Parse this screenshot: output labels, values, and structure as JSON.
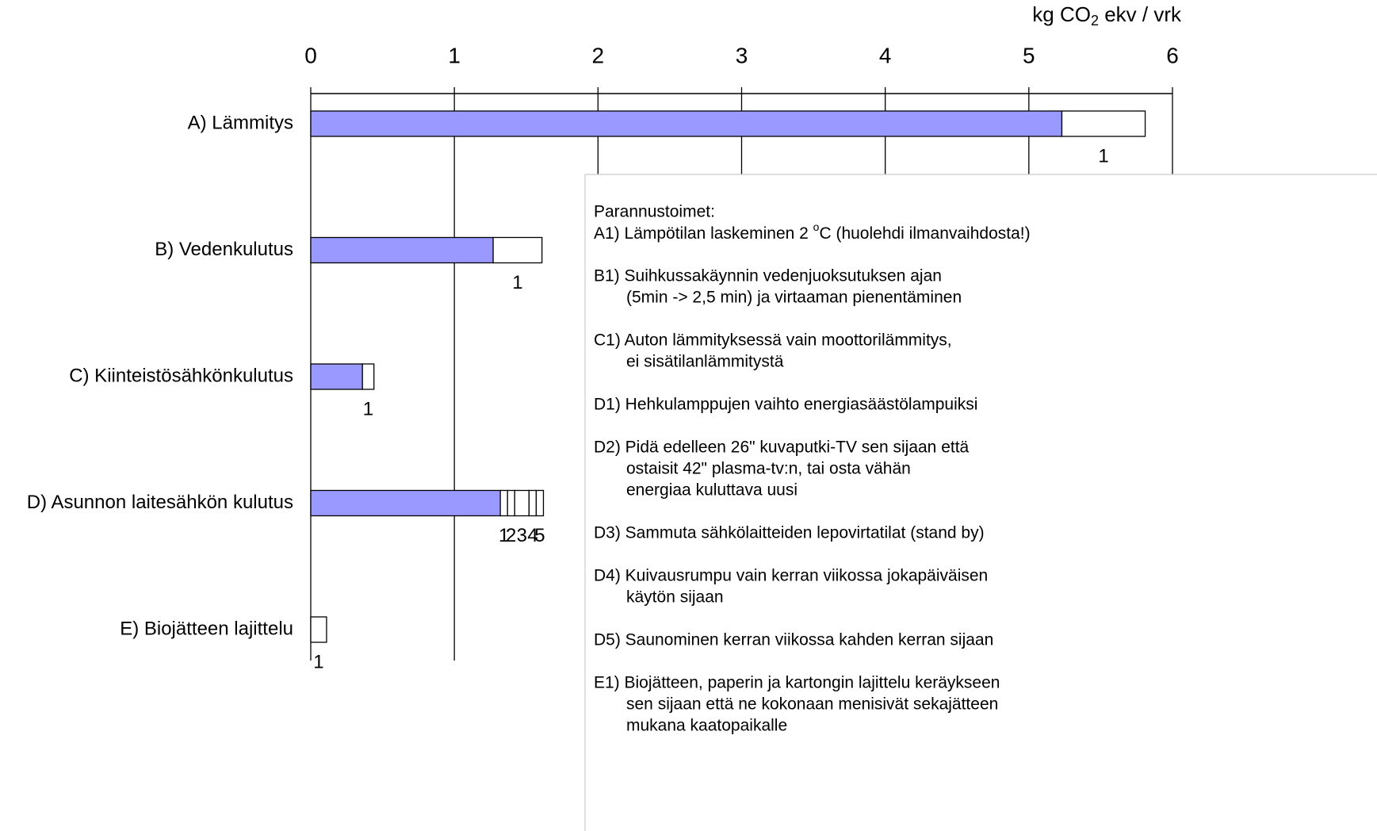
{
  "chart_data": {
    "type": "stacked-barh",
    "x_label": [
      "kg CO",
      "2",
      " ekv / vrk"
    ],
    "categories": [
      "A) Lämmitys",
      "B) Vedenkulutus",
      "C) Kiinteistösähkönkulutus",
      "D) Asunnon laitesähkön kulutus",
      "E) Biojätteen lajittelu"
    ],
    "series": [
      {
        "color": "#9999ff",
        "values": [
          5.23,
          1.27,
          0.36,
          1.32,
          0
        ]
      },
      {
        "color": "#ffffff",
        "values": [
          0.58,
          0.34,
          0.08,
          0.05,
          0.11
        ],
        "segment_labels": [
          "1",
          "1",
          "1",
          "1",
          "1"
        ]
      },
      {
        "color": "#ffffff",
        "values": [
          null,
          null,
          null,
          0.05,
          null
        ],
        "segment_labels": [
          null,
          null,
          null,
          "2",
          null
        ]
      },
      {
        "color": "#ffffff",
        "values": [
          null,
          null,
          null,
          0.1,
          null
        ],
        "segment_labels": [
          null,
          null,
          null,
          "3",
          null
        ]
      },
      {
        "color": "#ffffff",
        "values": [
          null,
          null,
          null,
          0.05,
          null
        ],
        "segment_labels": [
          null,
          null,
          null,
          "4",
          null
        ]
      },
      {
        "color": "#ffffff",
        "values": [
          null,
          null,
          null,
          0.05,
          null
        ],
        "segment_labels": [
          null,
          null,
          null,
          "5",
          null
        ]
      }
    ],
    "xlim": [
      0,
      6
    ],
    "xticks": [
      0,
      1,
      2,
      3,
      4,
      5,
      6
    ],
    "grid": true
  },
  "notes": {
    "title": "Parannustoimet:",
    "items": [
      [
        [
          "A1) Lämpötilan laskeminen 2 ",
          "o",
          "C (huolehdi ilmanvaihdosta!)"
        ]
      ],
      [
        "B1) Suihkussakäynnin  vedenjuoksutuksen ajan",
        "(5min -> 2,5 min) ja virtaaman pienentäminen"
      ],
      [
        "C1) Auton lämmityksessä vain moottorilämmitys,",
        "ei sisätilanlämmitystä"
      ],
      [
        "D1) Hehkulamppujen vaihto energiasäästölampuiksi"
      ],
      [
        "D2) Pidä edelleen 26\" kuvaputki-TV sen sijaan että",
        "ostaisit 42\" plasma-tv:n, tai osta vähän",
        "energiaa kuluttava uusi"
      ],
      [
        "D3) Sammuta sähkölaitteiden lepovirtatilat (stand by)"
      ],
      [
        "D4) Kuivausrumpu vain kerran viikossa jokapäiväisen",
        "käytön sijaan"
      ],
      [
        "D5) Saunominen kerran viikossa kahden kerran sijaan"
      ],
      [
        "E1) Biojätteen, paperin ja kartongin lajittelu keräykseen",
        "sen sijaan että ne kokonaan menisivät sekajätteen",
        "mukana kaatopaikalle"
      ]
    ]
  }
}
